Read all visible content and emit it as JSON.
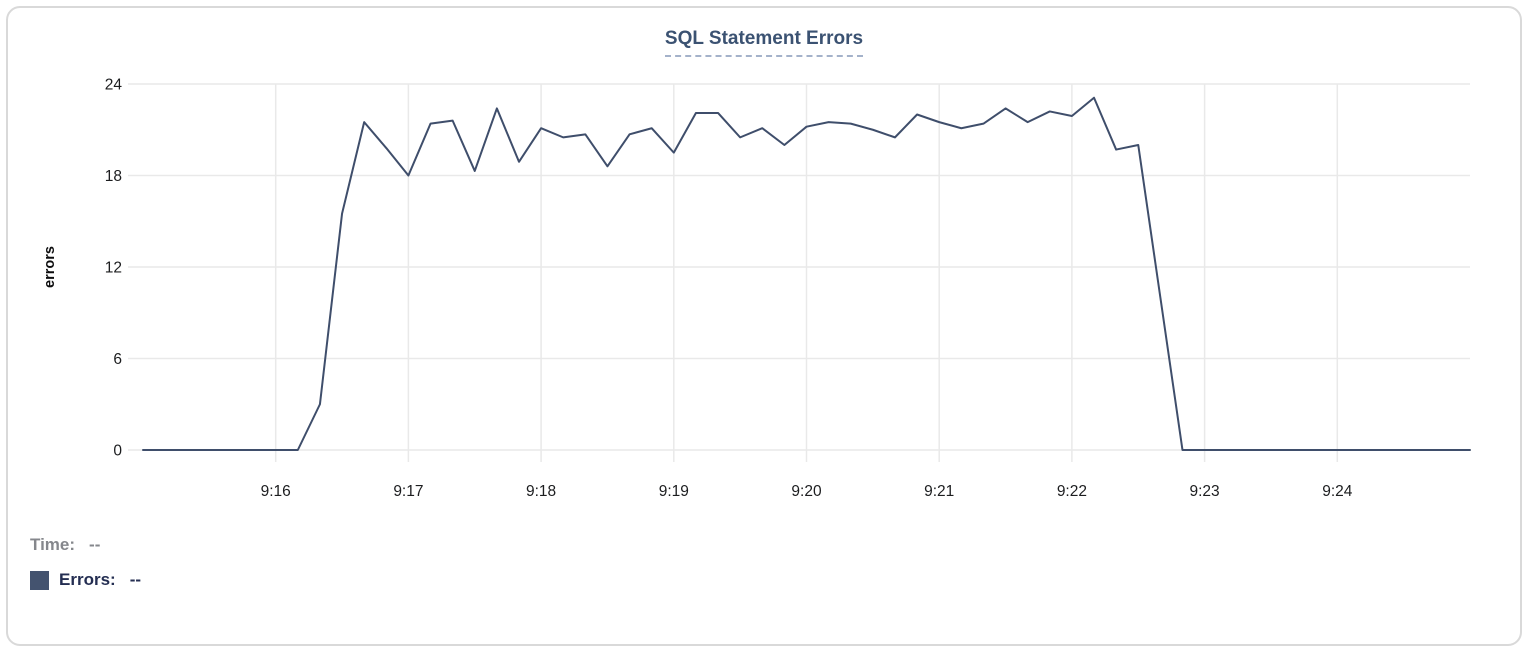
{
  "header": {
    "title": "SQL Statement Errors"
  },
  "readout": {
    "time_label": "Time:",
    "time_value": "--",
    "errors_label": "Errors:",
    "errors_value": "--"
  },
  "colors": {
    "line": "#3f4e6b",
    "title": "#3b5272",
    "title_underline": "#a4b2ca",
    "grid": "#e9e9e9",
    "axis_text": "#1c1d1f",
    "time_text": "#85878c",
    "errors_text": "#242e52",
    "swatch": "#44536f",
    "card_border": "#d9d9d9",
    "background": "#ffffff"
  },
  "chart_data": {
    "type": "line",
    "title": "SQL Statement Errors",
    "xlabel": "",
    "ylabel": "errors",
    "ylim": [
      0,
      24
    ],
    "y_ticks": [
      0,
      6,
      12,
      18,
      24
    ],
    "x_tick_labels": [
      "9:16",
      "9:17",
      "9:18",
      "9:19",
      "9:20",
      "9:21",
      "9:22",
      "9:23",
      "9:24"
    ],
    "x_tick_indices": [
      6,
      12,
      18,
      24,
      30,
      36,
      42,
      48,
      54
    ],
    "x_start_time": "9:15:00",
    "x_end_time": "9:25:00",
    "x_interval_seconds": 10,
    "grid": true,
    "legend_position": "bottom-left",
    "series": [
      {
        "name": "Errors",
        "color": "#3f4e6b",
        "values": [
          0,
          0,
          0,
          0,
          0,
          0,
          0,
          0,
          3,
          15.5,
          21.5,
          19.8,
          18,
          21.4,
          21.6,
          18.3,
          22.4,
          18.9,
          21.1,
          20.5,
          20.7,
          18.6,
          20.7,
          21.1,
          19.5,
          22.1,
          22.1,
          20.5,
          21.1,
          20,
          21.2,
          21.5,
          21.4,
          21,
          20.5,
          22,
          21.5,
          21.1,
          21.4,
          22.4,
          21.5,
          22.2,
          21.9,
          23.1,
          19.7,
          20,
          10,
          0,
          0,
          0,
          0,
          0,
          0,
          0,
          0,
          0,
          0,
          0,
          0,
          0,
          0
        ]
      }
    ]
  }
}
